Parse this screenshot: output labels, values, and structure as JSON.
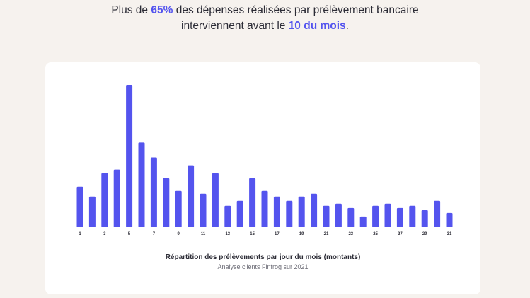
{
  "headline": {
    "line1_prefix": "Plus de ",
    "line1_highlight": "65%",
    "line1_suffix": " des dépenses réalisées par prélèvement bancaire",
    "line2_prefix": "interviennent avant le ",
    "line2_highlight": "10 du mois",
    "line2_suffix": "."
  },
  "colors": {
    "accent": "#5454ee",
    "background": "#f6f2ee",
    "card": "#ffffff",
    "text": "#2b2b35"
  },
  "chart_data": {
    "type": "bar",
    "title": "Répartition des prélèvements par jour du mois (montants)",
    "subtitle": "Analyse clients Finfrog sur 2021",
    "xlabel": "",
    "ylabel": "",
    "categories": [
      "1",
      "2",
      "3",
      "4",
      "5",
      "6",
      "7",
      "8",
      "9",
      "10",
      "11",
      "12",
      "13",
      "14",
      "15",
      "16",
      "17",
      "18",
      "19",
      "20",
      "21",
      "22",
      "23",
      "24",
      "25",
      "26",
      "27",
      "28",
      "29",
      "30",
      "31"
    ],
    "tick_labels": [
      "1",
      "3",
      "5",
      "7",
      "9",
      "11",
      "13",
      "15",
      "17",
      "19",
      "21",
      "23",
      "25",
      "27",
      "29",
      "31"
    ],
    "values": [
      57,
      43,
      76,
      81,
      200,
      119,
      98,
      69,
      51,
      87,
      47,
      76,
      30,
      37,
      69,
      51,
      43,
      37,
      43,
      47,
      30,
      33,
      27,
      15,
      30,
      33,
      27,
      30,
      24,
      37,
      20
    ],
    "ylim": [
      0,
      200
    ],
    "grid": false
  }
}
